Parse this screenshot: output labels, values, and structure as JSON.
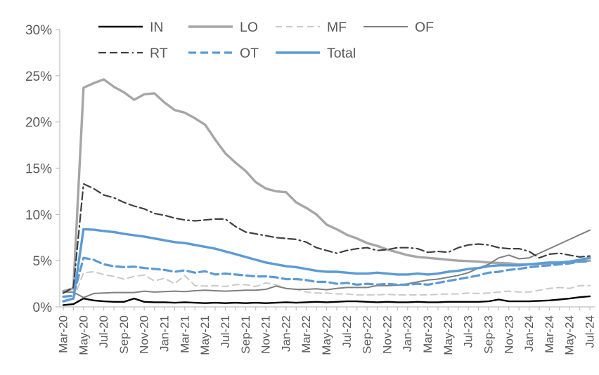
{
  "chart_data": {
    "type": "line",
    "title": "",
    "xlabel": "",
    "ylabel": "",
    "ylim": [
      0,
      30
    ],
    "y_tick_step": 5,
    "y_ticks": [
      "0%",
      "5%",
      "10%",
      "15%",
      "20%",
      "25%",
      "30%"
    ],
    "x_label_every": 2,
    "grid": false,
    "legend_position": "top",
    "axis_color": "#bfbfbf",
    "label_color": "#595959",
    "months": [
      "Mar-20",
      "Apr-20",
      "May-20",
      "Jun-20",
      "Jul-20",
      "Aug-20",
      "Sep-20",
      "Oct-20",
      "Nov-20",
      "Dec-20",
      "Jan-21",
      "Feb-21",
      "Mar-21",
      "Apr-21",
      "May-21",
      "Jun-21",
      "Jul-21",
      "Aug-21",
      "Sep-21",
      "Oct-21",
      "Nov-21",
      "Dec-21",
      "Jan-22",
      "Feb-22",
      "Mar-22",
      "Apr-22",
      "May-22",
      "Jun-22",
      "Jul-22",
      "Aug-22",
      "Sep-22",
      "Oct-22",
      "Nov-22",
      "Dec-22",
      "Jan-23",
      "Feb-23",
      "Mar-23",
      "Apr-23",
      "May-23",
      "Jun-23",
      "Jul-23",
      "Aug-23",
      "Sep-23",
      "Oct-23",
      "Nov-23",
      "Dec-23",
      "Jan-24",
      "Feb-24",
      "Mar-24",
      "Apr-24",
      "May-24",
      "Jun-24",
      "Jul-24"
    ],
    "series": [
      {
        "name": "IN",
        "color": "#000000",
        "dash_pattern": "",
        "width": 2.4,
        "values": [
          0.2,
          0.3,
          0.9,
          0.7,
          0.6,
          0.55,
          0.55,
          0.9,
          0.55,
          0.5,
          0.5,
          0.45,
          0.5,
          0.45,
          0.4,
          0.45,
          0.4,
          0.45,
          0.4,
          0.45,
          0.4,
          0.45,
          0.5,
          0.45,
          0.5,
          0.55,
          0.5,
          0.55,
          0.6,
          0.6,
          0.55,
          0.5,
          0.55,
          0.5,
          0.5,
          0.55,
          0.5,
          0.5,
          0.55,
          0.55,
          0.55,
          0.55,
          0.6,
          0.8,
          0.6,
          0.6,
          0.6,
          0.65,
          0.7,
          0.8,
          0.9,
          1.05,
          1.15
        ]
      },
      {
        "name": "LO",
        "color": "#a6a6a6",
        "dash_pattern": "",
        "width": 3.4,
        "values": [
          1.7,
          2.0,
          23.7,
          24.2,
          24.6,
          23.8,
          23.2,
          22.4,
          23.0,
          23.1,
          22.1,
          21.3,
          21.0,
          20.4,
          19.7,
          18.1,
          16.6,
          15.6,
          14.7,
          13.5,
          12.8,
          12.5,
          12.4,
          11.3,
          10.7,
          10.0,
          8.9,
          8.4,
          7.8,
          7.4,
          6.9,
          6.6,
          6.2,
          5.9,
          5.6,
          5.4,
          5.3,
          5.2,
          5.1,
          5.0,
          4.95,
          4.9,
          4.8,
          4.75,
          4.7,
          4.6,
          4.6,
          4.65,
          4.7,
          4.75,
          4.8,
          4.9,
          5.0
        ]
      },
      {
        "name": "MF",
        "color": "#c9c9c9",
        "dash_pattern": "9 6",
        "width": 2,
        "values": [
          0.6,
          0.8,
          3.7,
          3.8,
          3.5,
          3.3,
          3.0,
          3.3,
          3.45,
          2.8,
          3.1,
          2.5,
          3.4,
          2.3,
          2.25,
          2.3,
          2.2,
          2.4,
          2.4,
          2.2,
          2.6,
          2.4,
          2.0,
          1.9,
          1.6,
          1.5,
          1.5,
          1.4,
          1.4,
          1.3,
          1.3,
          1.3,
          1.35,
          1.3,
          1.3,
          1.3,
          1.3,
          1.35,
          1.4,
          1.4,
          1.5,
          1.45,
          1.5,
          1.6,
          1.7,
          1.6,
          1.6,
          1.8,
          2.0,
          2.1,
          2.0,
          2.3,
          2.3
        ]
      },
      {
        "name": "OF",
        "color": "#7f7f7f",
        "dash_pattern": "",
        "width": 2,
        "values": [
          1.6,
          1.6,
          1.0,
          1.45,
          1.5,
          1.55,
          1.55,
          1.55,
          1.7,
          1.6,
          1.65,
          1.7,
          1.65,
          1.75,
          1.8,
          1.75,
          1.7,
          1.75,
          1.8,
          1.8,
          1.9,
          2.25,
          2.0,
          1.9,
          1.9,
          1.95,
          1.85,
          2.0,
          2.1,
          2.1,
          2.1,
          2.3,
          2.3,
          2.35,
          2.5,
          2.7,
          2.9,
          3.0,
          3.2,
          3.4,
          3.7,
          4.2,
          4.6,
          5.3,
          5.6,
          5.2,
          5.3,
          5.8,
          6.3,
          6.8,
          7.3,
          7.8,
          8.3
        ]
      },
      {
        "name": "RT",
        "color": "#404040",
        "dash_pattern": "11 5 11 5 11 5 2 5",
        "width": 2.2,
        "values": [
          1.5,
          2.1,
          13.3,
          12.8,
          12.1,
          11.8,
          11.3,
          10.9,
          10.6,
          10.1,
          9.9,
          9.6,
          9.4,
          9.3,
          9.4,
          9.5,
          9.5,
          8.7,
          8.1,
          7.9,
          7.7,
          7.5,
          7.4,
          7.3,
          7.0,
          6.4,
          6.1,
          5.8,
          6.1,
          6.3,
          6.4,
          6.1,
          6.2,
          6.4,
          6.4,
          6.3,
          5.9,
          6.0,
          5.9,
          6.4,
          6.7,
          6.8,
          6.7,
          6.4,
          6.3,
          6.3,
          6.0,
          5.3,
          5.7,
          5.8,
          5.6,
          5.4,
          5.5
        ]
      },
      {
        "name": "OT",
        "color": "#5b9bd5",
        "dash_pattern": "11 6",
        "width": 3.2,
        "values": [
          1.1,
          1.2,
          5.3,
          5.1,
          4.6,
          4.4,
          4.3,
          4.35,
          4.2,
          4.1,
          4.0,
          3.8,
          3.95,
          3.7,
          3.85,
          3.5,
          3.6,
          3.5,
          3.4,
          3.3,
          3.3,
          3.2,
          3.0,
          3.0,
          2.9,
          2.7,
          2.7,
          2.5,
          2.6,
          2.4,
          2.5,
          2.4,
          2.5,
          2.4,
          2.4,
          2.5,
          2.4,
          2.6,
          2.8,
          3.0,
          3.2,
          3.4,
          3.7,
          3.8,
          4.0,
          4.1,
          4.3,
          4.4,
          4.5,
          4.6,
          4.7,
          4.9,
          4.9
        ]
      },
      {
        "name": "Total",
        "color": "#5b9bd5",
        "dash_pattern": "",
        "width": 3.4,
        "values": [
          0.6,
          0.9,
          8.4,
          8.35,
          8.2,
          8.1,
          7.9,
          7.75,
          7.6,
          7.4,
          7.2,
          7.0,
          6.9,
          6.7,
          6.5,
          6.3,
          6.0,
          5.7,
          5.4,
          5.1,
          4.8,
          4.6,
          4.4,
          4.3,
          4.1,
          3.9,
          3.8,
          3.8,
          3.7,
          3.6,
          3.6,
          3.7,
          3.6,
          3.5,
          3.5,
          3.6,
          3.5,
          3.6,
          3.8,
          3.9,
          4.1,
          4.2,
          4.4,
          4.5,
          4.5,
          4.5,
          4.6,
          4.7,
          4.8,
          4.8,
          4.9,
          5.1,
          5.3
        ]
      }
    ],
    "legend": {
      "columns": 4,
      "entries": [
        "IN",
        "LO",
        "MF",
        "OF",
        "RT",
        "OT",
        "Total"
      ]
    }
  }
}
